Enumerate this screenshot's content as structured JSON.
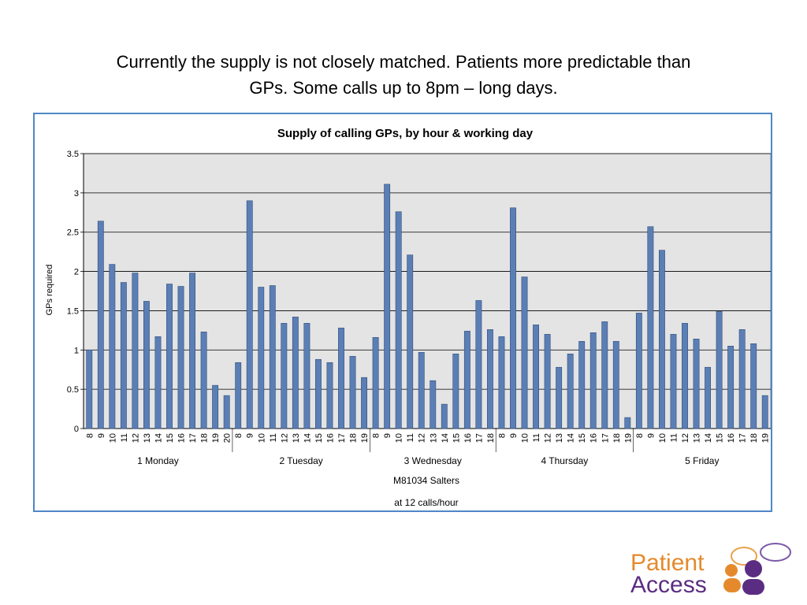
{
  "slide": {
    "title_line1": "Currently the supply is not closely matched.  Patients more predictable than",
    "title_line2": "GPs.  Some calls up to 8pm – long days."
  },
  "logo": {
    "line1": "Patient",
    "line2": "Access"
  },
  "colors": {
    "bar": "#5b7fb5",
    "bar_stroke": "#2f4d7c",
    "plot_bg": "#e4e4e4",
    "frame": "#4f86c6"
  },
  "chart_data": {
    "type": "bar",
    "title": "Supply of calling GPs, by hour & working day",
    "ylabel": "GPs required",
    "ylim": [
      0,
      3.5
    ],
    "yticks": [
      "0",
      "0.5",
      "1",
      "1.5",
      "2",
      "2.5",
      "3",
      "3.5"
    ],
    "grid": true,
    "x_footer_line1": "M81034 Salters",
    "x_footer_line2": "at  12 calls/hour",
    "groups": [
      {
        "name": "1 Monday",
        "hours": [
          "8",
          "9",
          "10",
          "11",
          "12",
          "13",
          "14",
          "15",
          "16",
          "17",
          "18",
          "19",
          "20"
        ],
        "values": [
          1.0,
          2.64,
          2.09,
          1.86,
          1.98,
          1.62,
          1.17,
          1.84,
          1.81,
          1.98,
          1.23,
          0.55,
          0.42
        ]
      },
      {
        "name": "2 Tuesday",
        "hours": [
          "8",
          "9",
          "10",
          "11",
          "12",
          "13",
          "14",
          "15",
          "16",
          "17",
          "18",
          "19"
        ],
        "values": [
          0.84,
          2.9,
          1.8,
          1.82,
          1.34,
          1.42,
          1.34,
          0.88,
          0.84,
          1.28,
          0.92,
          0.65
        ]
      },
      {
        "name": "3 Wednesday",
        "hours": [
          "8",
          "9",
          "10",
          "11",
          "12",
          "13",
          "14",
          "15",
          "16",
          "17",
          "18"
        ],
        "values": [
          1.16,
          3.11,
          2.76,
          2.21,
          0.97,
          0.61,
          0.31,
          0.95,
          1.24,
          1.63,
          1.26
        ]
      },
      {
        "name": "4 Thursday",
        "hours": [
          "8",
          "9",
          "10",
          "11",
          "12",
          "13",
          "14",
          "15",
          "16",
          "17",
          "18",
          "19"
        ],
        "values": [
          1.17,
          2.81,
          1.93,
          1.32,
          1.2,
          0.78,
          0.95,
          1.11,
          1.22,
          1.36,
          1.11,
          0.14
        ]
      },
      {
        "name": "5 Friday",
        "hours": [
          "8",
          "9",
          "10",
          "11",
          "12",
          "13",
          "14",
          "15",
          "16",
          "17",
          "18",
          "19"
        ],
        "values": [
          1.47,
          2.57,
          2.27,
          1.2,
          1.34,
          1.14,
          0.78,
          1.49,
          1.05,
          1.26,
          1.08,
          0.42
        ]
      }
    ]
  }
}
